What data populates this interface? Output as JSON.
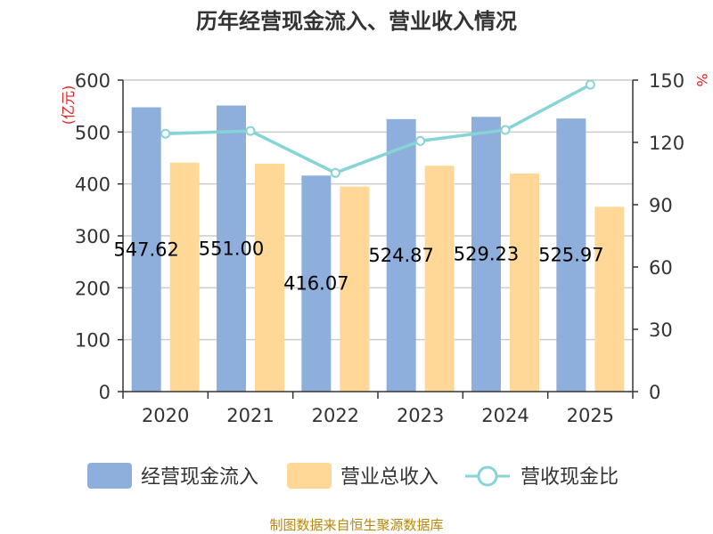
{
  "chart_data": {
    "type": "bar",
    "title": "历年经营现金流入、营业收入情况",
    "categories": [
      "2020",
      "2021",
      "2022",
      "2023",
      "2024",
      "2025"
    ],
    "series": [
      {
        "name": "经营现金流入",
        "type": "bar",
        "axis": "left",
        "color": "#8eaedb",
        "values": [
          547.62,
          551.0,
          416.07,
          524.87,
          529.23,
          525.97
        ],
        "labels": [
          "547.62",
          "551.00",
          "416.07",
          "524.87",
          "529.23",
          "525.97"
        ]
      },
      {
        "name": "营业总收入",
        "type": "bar",
        "axis": "left",
        "color": "#ffd897",
        "values": [
          441,
          439,
          395,
          435,
          420,
          356
        ]
      },
      {
        "name": "营收现金比",
        "type": "line",
        "axis": "right",
        "color": "#86d4d6",
        "values": [
          124.2,
          125.5,
          105.3,
          120.7,
          126.0,
          147.8
        ]
      }
    ],
    "ylabel_left": "(亿元)",
    "ylabel_right": "%",
    "ylim_left": [
      0,
      600
    ],
    "yticks_left": [
      "0",
      "100",
      "200",
      "300",
      "400",
      "500",
      "600"
    ],
    "ylim_right": [
      0,
      150
    ],
    "yticks_right": [
      "0",
      "30",
      "60",
      "90",
      "120",
      "150"
    ],
    "grid": true,
    "legend_position": "bottom"
  },
  "source_note": "制图数据来自恒生聚源数据库"
}
